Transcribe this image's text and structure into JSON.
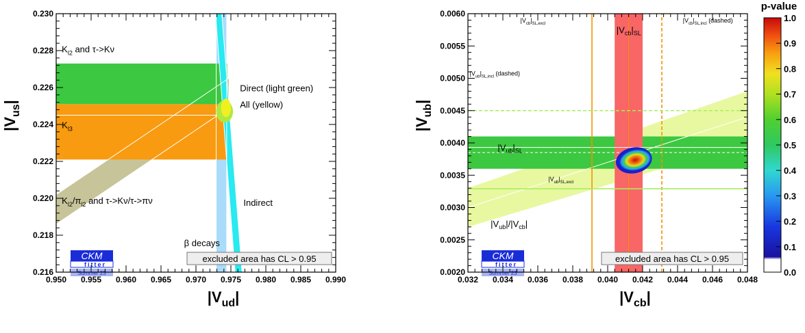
{
  "chart_data": [
    {
      "type": "area",
      "xlabel": "|V",
      "xlabel_sub": "ud",
      "ylabel": "|V",
      "ylabel_sub": "us",
      "xlim": [
        0.95,
        0.99
      ],
      "ylim": [
        0.216,
        0.23
      ],
      "xticks": [
        "0.950",
        "0.955",
        "0.960",
        "0.965",
        "0.970",
        "0.975",
        "0.980",
        "0.985",
        "0.990"
      ],
      "yticks": [
        "0.216",
        "0.218",
        "0.220",
        "0.222",
        "0.224",
        "0.226",
        "0.228",
        "0.230"
      ],
      "colors": {
        "green": "#3cc840",
        "orange": "#f89b10",
        "light_blue": "#a8dcfa",
        "cyan": "#28eaf0",
        "tan": "#c8c49a",
        "yellow": "#f0f020",
        "light_green": "#b0e840"
      },
      "regions": [
        {
          "name": "K_l2 and tau->K nu",
          "x": [
            0.95,
            0.9745
          ],
          "y": [
            0.2251,
            0.2273
          ]
        },
        {
          "name": "K_l3",
          "x": [
            0.95,
            0.9747
          ],
          "y": [
            0.2221,
            0.2251
          ]
        },
        {
          "name": "beta decays",
          "x": [
            0.9729,
            0.9744
          ],
          "y": [
            0.216,
            0.23
          ]
        },
        {
          "name": "Indirect band",
          "polygon": [
            [
              0.9728,
              0.23
            ],
            [
              0.9737,
              0.23
            ],
            [
              0.9766,
              0.216
            ],
            [
              0.9756,
              0.216
            ]
          ]
        },
        {
          "name": "K_l2/pi_l2 band",
          "polygon": [
            [
              0.95,
              0.2186
            ],
            [
              0.95,
              0.2202
            ],
            [
              0.9747,
              0.2265
            ],
            [
              0.9747,
              0.2249
            ]
          ]
        },
        {
          "name": "Direct",
          "center": [
            0.9741,
            0.2247
          ],
          "rx": 0.0012,
          "ry": 0.0006
        },
        {
          "name": "All",
          "center": [
            0.9743,
            0.2249
          ],
          "rx": 0.0007,
          "ry": 0.0005
        }
      ],
      "annotations": [
        {
          "text": "K",
          "sub": "l2",
          "rest": " and τ->Kν",
          "x": 0.9508,
          "y": 0.2279
        },
        {
          "text": "Direct (light green)",
          "x": 0.9763,
          "y": 0.2258
        },
        {
          "text": "All (yellow)",
          "x": 0.9763,
          "y": 0.2249
        },
        {
          "text": "K",
          "sub": "l3",
          "rest": "",
          "x": 0.9508,
          "y": 0.2238
        },
        {
          "text": "K",
          "sub": "l2",
          "rest": "/π",
          "sub2": "l2",
          "rest2": " and τ->Kν/τ->πν",
          "x": 0.9508,
          "y": 0.2197
        },
        {
          "text": "Indirect",
          "x": 0.9768,
          "y": 0.2196
        },
        {
          "text": "β decays",
          "x": 0.9683,
          "y": 0.2174
        }
      ],
      "logo": {
        "line1": "CKM",
        "line2": "fitter",
        "line3": "Summer 23"
      },
      "excluded_note": "excluded area has CL > 0.95"
    },
    {
      "type": "area",
      "xlabel": "|V",
      "xlabel_sub": "cb",
      "ylabel": "|V",
      "ylabel_sub": "ub",
      "xlim": [
        0.032,
        0.048
      ],
      "ylim": [
        0.002,
        0.006
      ],
      "xticks": [
        "0.032",
        "0.034",
        "0.036",
        "0.038",
        "0.040",
        "0.042",
        "0.044",
        "0.046",
        "0.048"
      ],
      "yticks": [
        "0.0020",
        "0.0025",
        "0.0030",
        "0.0035",
        "0.0040",
        "0.0045",
        "0.0050",
        "0.0055",
        "0.0060"
      ],
      "colors": {
        "green": "#3cc840",
        "red": "#f86666",
        "pale": "#e8f8a0",
        "orange_line": "#f39200",
        "light_green_line": "#a8ee60",
        "white_line": "#ffffff"
      },
      "regions": [
        {
          "name": "|Vcb|_SL band",
          "x": [
            0.0404,
            0.042
          ],
          "y": [
            0.002,
            0.006
          ]
        },
        {
          "name": "|Vub|_SL band",
          "x": [
            0.032,
            0.048
          ],
          "y": [
            0.0036,
            0.0041
          ]
        },
        {
          "name": "|Vub|/|Vcb| cone",
          "polygon": [
            [
              0.032,
              0.0027
            ],
            [
              0.032,
              0.0033
            ],
            [
              0.048,
              0.0048
            ],
            [
              0.048,
              0.004
            ]
          ]
        },
        {
          "name": "Fit contour",
          "center": [
            0.0415,
            0.00373
          ],
          "rx": 0.001,
          "ry": 0.00016
        }
      ],
      "lines": [
        {
          "name": "|Vcb|_SL,excl",
          "orientation": "vertical",
          "value": 0.0391,
          "style": "solid"
        },
        {
          "name": "|Vcb|_SL,incl",
          "orientation": "vertical",
          "value": 0.0431,
          "style": "dashed"
        },
        {
          "name": "|Vub|_SL,excl",
          "orientation": "horizontal",
          "value": 0.00329,
          "style": "solid"
        },
        {
          "name": "|Vub|_SL,incl",
          "orientation": "horizontal",
          "value": 0.0045,
          "style": "dashed"
        }
      ],
      "annotations": [
        {
          "main": "|V",
          "sub": "cb",
          "rest": "|",
          "sub2": "SL,excl",
          "rest2": "",
          "x": 0.035,
          "y": 0.00586,
          "size": "small"
        },
        {
          "main": "|V",
          "sub": "cb",
          "rest": "|",
          "sub2": "SL",
          "rest2": "",
          "x": 0.0405,
          "y": 0.0057,
          "size": "large"
        },
        {
          "main": "|V",
          "sub": "cb",
          "rest": "|",
          "sub2": "SL,incl",
          "rest2": " (dashed)",
          "x": 0.0443,
          "y": 0.00586,
          "size": "small"
        },
        {
          "main": "|V",
          "sub": "ub",
          "rest": "|",
          "sub2": "SL,incl",
          "rest2": " (dashed)",
          "x": 0.0321,
          "y": 0.00504,
          "size": "small"
        },
        {
          "main": "|V",
          "sub": "ub",
          "rest": "|",
          "sub2": "SL",
          "rest2": "",
          "x": 0.0337,
          "y": 0.00388,
          "size": "large"
        },
        {
          "main": "|V",
          "sub": "ub",
          "rest": "|",
          "sub2": "SL,excl",
          "rest2": "",
          "x": 0.0366,
          "y": 0.00341,
          "size": "small"
        },
        {
          "main": "|V",
          "sub": "ub",
          "rest": "|/|V",
          "sub2": "cb",
          "rest2": "|",
          "x": 0.0333,
          "y": 0.0027,
          "size": "large"
        }
      ],
      "logo": {
        "line1": "CKM",
        "line2": "fitter",
        "line3": "Summer 23"
      },
      "excluded_note": "excluded area has CL > 0.95",
      "colorbar": {
        "title": "p-value",
        "ticks": [
          "0.0",
          "0.1",
          "0.2",
          "0.3",
          "0.4",
          "0.5",
          "0.6",
          "0.7",
          "0.8",
          "0.9",
          "1.0"
        ],
        "range": [
          0.0,
          1.0
        ]
      }
    }
  ]
}
